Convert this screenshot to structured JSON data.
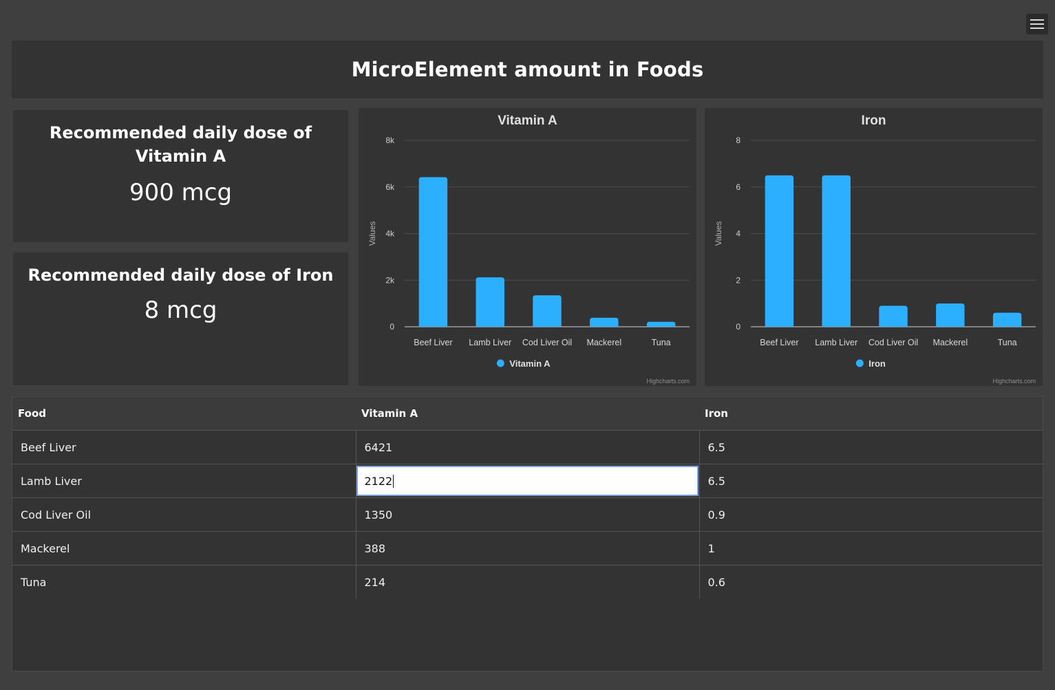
{
  "header": {
    "title": "MicroElement amount in Foods"
  },
  "menu": {
    "icon": "hamburger-menu-icon"
  },
  "kpis": [
    {
      "title": "Recommended daily dose of Vitamin A",
      "value": "900 mcg"
    },
    {
      "title": "Recommended daily dose of Iron",
      "value": "8 mcg"
    }
  ],
  "chart_data": [
    {
      "type": "bar",
      "title": "Vitamin A",
      "ylabel": "Values",
      "categories": [
        "Beef Liver",
        "Lamb Liver",
        "Cod Liver Oil",
        "Mackerel",
        "Tuna"
      ],
      "series": [
        {
          "name": "Vitamin A",
          "values": [
            6421,
            2122,
            1350,
            388,
            214
          ]
        }
      ],
      "ylim": [
        0,
        8000
      ],
      "yticks": [
        "0",
        "2k",
        "4k",
        "6k",
        "8k"
      ],
      "ytick_values": [
        0,
        2000,
        4000,
        6000,
        8000
      ],
      "color": "#2caffe",
      "credits": "Highcharts.com",
      "legend": "bottom-center"
    },
    {
      "type": "bar",
      "title": "Iron",
      "ylabel": "Values",
      "categories": [
        "Beef Liver",
        "Lamb Liver",
        "Cod Liver Oil",
        "Mackerel",
        "Tuna"
      ],
      "series": [
        {
          "name": "Iron",
          "values": [
            6.5,
            6.5,
            0.9,
            1,
            0.6
          ]
        }
      ],
      "ylim": [
        0,
        8
      ],
      "yticks": [
        "0",
        "2",
        "4",
        "6",
        "8"
      ],
      "ytick_values": [
        0,
        2,
        4,
        6,
        8
      ],
      "color": "#2caffe",
      "credits": "Highcharts.com",
      "legend": "bottom-center"
    }
  ],
  "table": {
    "headers": [
      "Food",
      "Vitamin A",
      "Iron"
    ],
    "rows": [
      [
        "Beef Liver",
        "6421",
        "6.5"
      ],
      [
        "Lamb Liver",
        "2122",
        "6.5"
      ],
      [
        "Cod Liver Oil",
        "1350",
        "0.9"
      ],
      [
        "Mackerel",
        "388",
        "1"
      ],
      [
        "Tuna",
        "214",
        "0.6"
      ]
    ]
  }
}
